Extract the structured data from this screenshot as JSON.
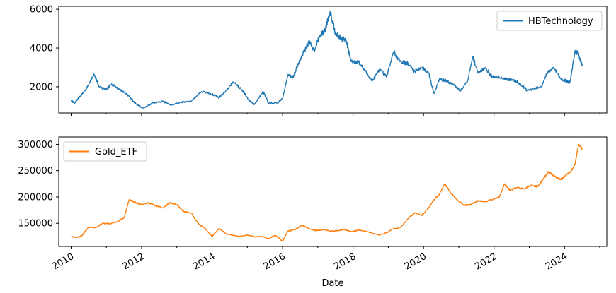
{
  "chart_data": [
    {
      "type": "line",
      "series": [
        {
          "name": "HBTechnology",
          "color": "#1f77b4",
          "points": [
            [
              2010.0,
              1300
            ],
            [
              2010.1,
              1150
            ],
            [
              2010.2,
              1400
            ],
            [
              2010.35,
              1700
            ],
            [
              2010.5,
              2100
            ],
            [
              2010.65,
              2650
            ],
            [
              2010.8,
              2000
            ],
            [
              2011.0,
              1850
            ],
            [
              2011.15,
              2150
            ],
            [
              2011.35,
              1900
            ],
            [
              2011.6,
              1600
            ],
            [
              2011.85,
              1100
            ],
            [
              2012.05,
              900
            ],
            [
              2012.3,
              1150
            ],
            [
              2012.6,
              1250
            ],
            [
              2012.85,
              1050
            ],
            [
              2013.1,
              1200
            ],
            [
              2013.4,
              1250
            ],
            [
              2013.7,
              1750
            ],
            [
              2013.95,
              1650
            ],
            [
              2014.2,
              1450
            ],
            [
              2014.4,
              1800
            ],
            [
              2014.6,
              2250
            ],
            [
              2014.85,
              1850
            ],
            [
              2015.05,
              1300
            ],
            [
              2015.2,
              1100
            ],
            [
              2015.45,
              1750
            ],
            [
              2015.6,
              1150
            ],
            [
              2015.85,
              1150
            ],
            [
              2016.0,
              1400
            ],
            [
              2016.15,
              2600
            ],
            [
              2016.3,
              2500
            ],
            [
              2016.45,
              3200
            ],
            [
              2016.6,
              3800
            ],
            [
              2016.75,
              4300
            ],
            [
              2016.9,
              3900
            ],
            [
              2017.05,
              4600
            ],
            [
              2017.2,
              4900
            ],
            [
              2017.35,
              5900
            ],
            [
              2017.5,
              4800
            ],
            [
              2017.65,
              4500
            ],
            [
              2017.8,
              4400
            ],
            [
              2017.95,
              3300
            ],
            [
              2018.15,
              3300
            ],
            [
              2018.35,
              2800
            ],
            [
              2018.55,
              2300
            ],
            [
              2018.75,
              2900
            ],
            [
              2018.95,
              2500
            ],
            [
              2019.15,
              3800
            ],
            [
              2019.35,
              3300
            ],
            [
              2019.55,
              3200
            ],
            [
              2019.75,
              2800
            ],
            [
              2019.95,
              3000
            ],
            [
              2020.15,
              2700
            ],
            [
              2020.3,
              1650
            ],
            [
              2020.45,
              2400
            ],
            [
              2020.65,
              2300
            ],
            [
              2020.85,
              2100
            ],
            [
              2021.05,
              1800
            ],
            [
              2021.25,
              2300
            ],
            [
              2021.4,
              3550
            ],
            [
              2021.55,
              2700
            ],
            [
              2021.75,
              3000
            ],
            [
              2021.95,
              2500
            ],
            [
              2022.15,
              2500
            ],
            [
              2022.35,
              2400
            ],
            [
              2022.55,
              2350
            ],
            [
              2022.75,
              2150
            ],
            [
              2022.95,
              1800
            ],
            [
              2023.15,
              1900
            ],
            [
              2023.35,
              2000
            ],
            [
              2023.5,
              2700
            ],
            [
              2023.7,
              3000
            ],
            [
              2023.9,
              2400
            ],
            [
              2024.05,
              2300
            ],
            [
              2024.15,
              2200
            ],
            [
              2024.3,
              3850
            ],
            [
              2024.4,
              3700
            ],
            [
              2024.5,
              3050
            ]
          ]
        }
      ],
      "xlim": [
        2009.65,
        2025.2
      ],
      "ylim": [
        650,
        6150
      ],
      "x_ticks": [
        2010,
        2012,
        2014,
        2016,
        2018,
        2020,
        2022,
        2024
      ],
      "y_ticks": [
        2000,
        4000,
        6000
      ],
      "y_tick_labels": [
        "2000",
        "4000",
        "6000"
      ],
      "legend": "top-right",
      "grid": false
    },
    {
      "type": "line",
      "series": [
        {
          "name": "Gold_ETF",
          "color": "#ff7f0e",
          "points": [
            [
              2010.0,
              125000
            ],
            [
              2010.15,
              123000
            ],
            [
              2010.3,
              126000
            ],
            [
              2010.5,
              143000
            ],
            [
              2010.7,
              142000
            ],
            [
              2010.9,
              150000
            ],
            [
              2011.1,
              149000
            ],
            [
              2011.3,
              153000
            ],
            [
              2011.5,
              160000
            ],
            [
              2011.65,
              195000
            ],
            [
              2011.8,
              190000
            ],
            [
              2012.0,
              186000
            ],
            [
              2012.2,
              189000
            ],
            [
              2012.4,
              183000
            ],
            [
              2012.6,
              179000
            ],
            [
              2012.8,
              189000
            ],
            [
              2013.0,
              185000
            ],
            [
              2013.2,
              172000
            ],
            [
              2013.4,
              170000
            ],
            [
              2013.6,
              150000
            ],
            [
              2013.8,
              140000
            ],
            [
              2014.0,
              125000
            ],
            [
              2014.2,
              140000
            ],
            [
              2014.4,
              130000
            ],
            [
              2014.6,
              127000
            ],
            [
              2014.8,
              125000
            ],
            [
              2015.0,
              128000
            ],
            [
              2015.2,
              124000
            ],
            [
              2015.4,
              125000
            ],
            [
              2015.6,
              121000
            ],
            [
              2015.8,
              127000
            ],
            [
              2016.0,
              116000
            ],
            [
              2016.15,
              135000
            ],
            [
              2016.35,
              138000
            ],
            [
              2016.55,
              146000
            ],
            [
              2016.75,
              140000
            ],
            [
              2016.95,
              136000
            ],
            [
              2017.15,
              138000
            ],
            [
              2017.35,
              135000
            ],
            [
              2017.55,
              136000
            ],
            [
              2017.75,
              138000
            ],
            [
              2017.95,
              134000
            ],
            [
              2018.15,
              137000
            ],
            [
              2018.35,
              135000
            ],
            [
              2018.55,
              131000
            ],
            [
              2018.75,
              128000
            ],
            [
              2018.95,
              132000
            ],
            [
              2019.15,
              140000
            ],
            [
              2019.35,
              142000
            ],
            [
              2019.55,
              158000
            ],
            [
              2019.75,
              170000
            ],
            [
              2019.95,
              165000
            ],
            [
              2020.15,
              180000
            ],
            [
              2020.3,
              195000
            ],
            [
              2020.45,
              205000
            ],
            [
              2020.6,
              225000
            ],
            [
              2020.75,
              210000
            ],
            [
              2020.95,
              195000
            ],
            [
              2021.15,
              184000
            ],
            [
              2021.35,
              186000
            ],
            [
              2021.55,
              193000
            ],
            [
              2021.75,
              191000
            ],
            [
              2021.95,
              195000
            ],
            [
              2022.15,
              200000
            ],
            [
              2022.3,
              225000
            ],
            [
              2022.45,
              213000
            ],
            [
              2022.65,
              218000
            ],
            [
              2022.85,
              215000
            ],
            [
              2023.05,
              222000
            ],
            [
              2023.25,
              220000
            ],
            [
              2023.4,
              235000
            ],
            [
              2023.55,
              248000
            ],
            [
              2023.7,
              240000
            ],
            [
              2023.9,
              233000
            ],
            [
              2024.05,
              242000
            ],
            [
              2024.2,
              250000
            ],
            [
              2024.3,
              263000
            ],
            [
              2024.4,
              300000
            ],
            [
              2024.5,
              292000
            ]
          ]
        }
      ],
      "xlim": [
        2009.65,
        2025.2
      ],
      "ylim": [
        106000,
        314000
      ],
      "x_ticks": [
        2010,
        2012,
        2014,
        2016,
        2018,
        2020,
        2022,
        2024
      ],
      "x_tick_labels": [
        "2010",
        "2012",
        "2014",
        "2016",
        "2018",
        "2020",
        "2022",
        "2024"
      ],
      "y_ticks": [
        150000,
        200000,
        250000,
        300000
      ],
      "y_tick_labels": [
        "150000",
        "200000",
        "250000",
        "300000"
      ],
      "xlabel": "Date",
      "legend": "top-left",
      "grid": false
    }
  ]
}
